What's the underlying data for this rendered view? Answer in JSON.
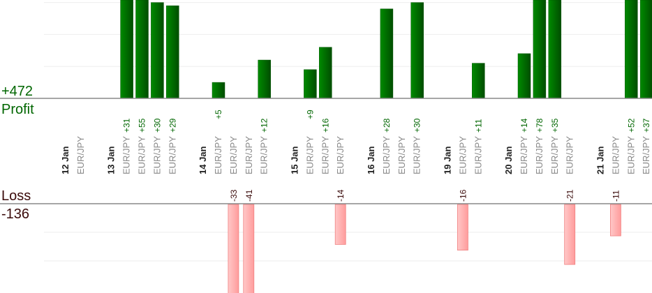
{
  "summary": {
    "profit_total": "+472",
    "profit_label": "Profit",
    "loss_label": "Loss",
    "loss_total": "-136"
  },
  "colors": {
    "profit": "#006600",
    "loss": "#ffaaaa",
    "loss_text": "#3a0a0a",
    "date": "#222222",
    "pair": "#888888"
  },
  "chart_data": {
    "type": "bar",
    "title": "",
    "grid": true,
    "columns": [
      {
        "kind": "date",
        "label": "12 Jan"
      },
      {
        "kind": "trade",
        "label": "EUR/JPY",
        "value": null
      },
      {
        "kind": "gap"
      },
      {
        "kind": "date",
        "label": "13 Jan"
      },
      {
        "kind": "trade",
        "label": "EUR/JPY",
        "value": 31
      },
      {
        "kind": "trade",
        "label": "EUR/JPY",
        "value": 55
      },
      {
        "kind": "trade",
        "label": "EUR/JPY",
        "value": 30
      },
      {
        "kind": "trade",
        "label": "EUR/JPY",
        "value": 29
      },
      {
        "kind": "gap"
      },
      {
        "kind": "date",
        "label": "14 Jan"
      },
      {
        "kind": "trade",
        "label": "EUR/JPY",
        "value": 5
      },
      {
        "kind": "trade",
        "label": "EUR/JPY",
        "value": -33
      },
      {
        "kind": "trade",
        "label": "EUR/JPY",
        "value": -41
      },
      {
        "kind": "trade",
        "label": "EUR/JPY",
        "value": 12
      },
      {
        "kind": "gap"
      },
      {
        "kind": "date",
        "label": "15 Jan"
      },
      {
        "kind": "trade",
        "label": "EUR/JPY",
        "value": 9
      },
      {
        "kind": "trade",
        "label": "EUR/JPY",
        "value": 16
      },
      {
        "kind": "trade",
        "label": "EUR/JPY",
        "value": -14
      },
      {
        "kind": "gap"
      },
      {
        "kind": "date",
        "label": "16 Jan"
      },
      {
        "kind": "trade",
        "label": "EUR/JPY",
        "value": 28
      },
      {
        "kind": "trade",
        "label": "EUR/JPY",
        "value": null
      },
      {
        "kind": "trade",
        "label": "EUR/JPY",
        "value": 30
      },
      {
        "kind": "gap"
      },
      {
        "kind": "date",
        "label": "19 Jan"
      },
      {
        "kind": "trade",
        "label": "EUR/JPY",
        "value": -16
      },
      {
        "kind": "trade",
        "label": "EUR/JPY",
        "value": 11
      },
      {
        "kind": "gap"
      },
      {
        "kind": "date",
        "label": "20 Jan"
      },
      {
        "kind": "trade",
        "label": "EUR/JPY",
        "value": 14
      },
      {
        "kind": "trade",
        "label": "EUR/JPY",
        "value": 78
      },
      {
        "kind": "trade",
        "label": "EUR/JPY",
        "value": 35
      },
      {
        "kind": "trade",
        "label": "EUR/JPY",
        "value": -21
      },
      {
        "kind": "gap"
      },
      {
        "kind": "date",
        "label": "21 Jan"
      },
      {
        "kind": "trade",
        "label": "EUR/JPY",
        "value": -11
      },
      {
        "kind": "trade",
        "label": "EUR/JPY",
        "value": 52
      },
      {
        "kind": "trade",
        "label": "EUR/JPY",
        "value": 37
      }
    ]
  }
}
